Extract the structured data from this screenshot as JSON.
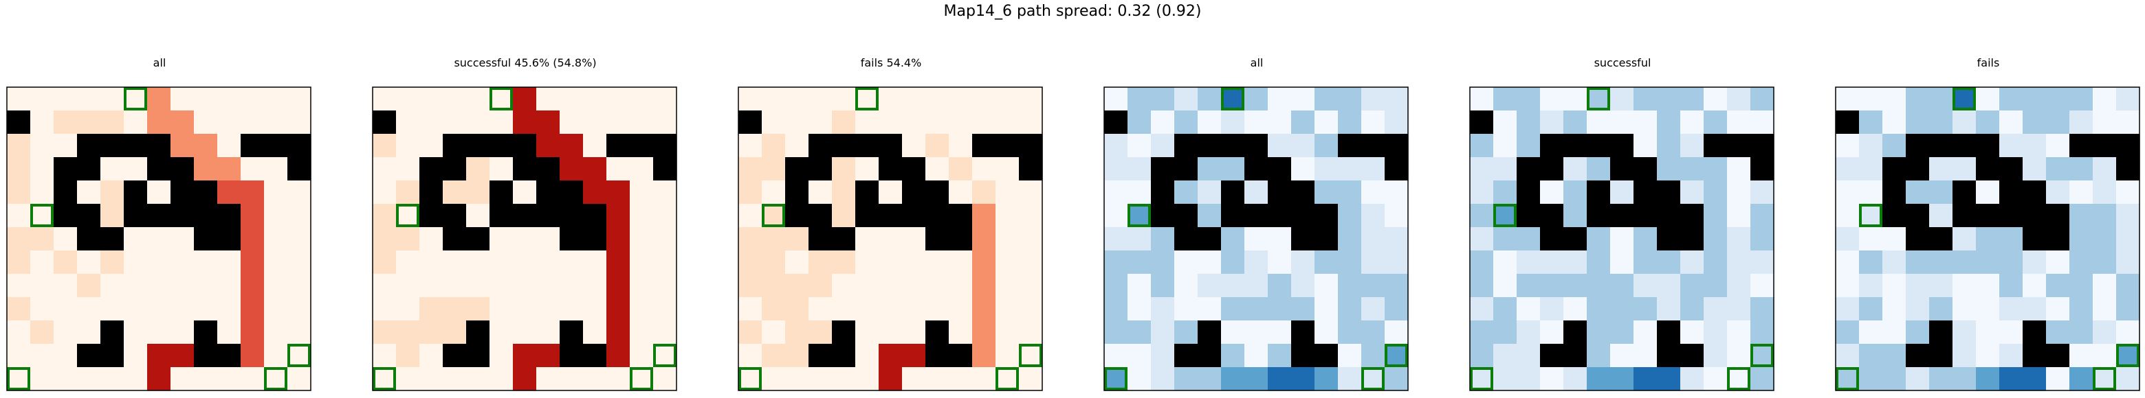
{
  "figure": {
    "suptitle": "Map14_6 path spread: 0.32 (0.92)"
  },
  "chart_data": {
    "type": "heatmap",
    "title": "Map14_6 path spread: 0.32 (0.92)",
    "grid_size": [
      13,
      13
    ],
    "legend": "none",
    "walls": [
      [
        1,
        0
      ],
      [
        2,
        3
      ],
      [
        2,
        4
      ],
      [
        2,
        5
      ],
      [
        2,
        6
      ],
      [
        2,
        10
      ],
      [
        2,
        11
      ],
      [
        2,
        12
      ],
      [
        3,
        2
      ],
      [
        3,
        3
      ],
      [
        3,
        6
      ],
      [
        3,
        7
      ],
      [
        3,
        12
      ],
      [
        4,
        2
      ],
      [
        4,
        5
      ],
      [
        4,
        7
      ],
      [
        4,
        8
      ],
      [
        5,
        2
      ],
      [
        5,
        3
      ],
      [
        5,
        5
      ],
      [
        5,
        6
      ],
      [
        5,
        7
      ],
      [
        5,
        8
      ],
      [
        5,
        9
      ],
      [
        6,
        3
      ],
      [
        6,
        4
      ],
      [
        6,
        8
      ],
      [
        6,
        9
      ],
      [
        10,
        4
      ],
      [
        10,
        8
      ],
      [
        11,
        4
      ],
      [
        11,
        3
      ],
      [
        11,
        8
      ],
      [
        11,
        9
      ]
    ],
    "markers": [
      [
        0,
        5
      ],
      [
        5,
        1
      ],
      [
        12,
        0
      ],
      [
        12,
        11
      ],
      [
        11,
        12
      ]
    ],
    "panels": [
      {
        "title": "all",
        "cmap": "Reds",
        "high": [
          [
            0,
            6,
            2
          ],
          [
            1,
            6,
            2
          ],
          [
            1,
            7,
            2
          ],
          [
            2,
            7,
            2
          ],
          [
            2,
            8,
            2
          ],
          [
            3,
            8,
            2
          ],
          [
            3,
            9,
            2
          ],
          [
            4,
            9,
            3
          ],
          [
            4,
            10,
            3
          ],
          [
            5,
            10,
            3
          ],
          [
            6,
            10,
            3
          ],
          [
            7,
            10,
            3
          ],
          [
            8,
            10,
            3
          ],
          [
            9,
            10,
            3
          ],
          [
            10,
            10,
            3
          ],
          [
            11,
            10,
            3
          ],
          [
            11,
            9,
            3
          ],
          [
            11,
            8,
            3
          ],
          [
            11,
            7,
            4
          ],
          [
            11,
            6,
            4
          ],
          [
            12,
            6,
            4
          ]
        ]
      },
      {
        "title": "successful 45.6% (54.8%)",
        "cmap": "Reds",
        "high": [
          [
            0,
            6,
            4
          ],
          [
            1,
            6,
            4
          ],
          [
            1,
            7,
            4
          ],
          [
            2,
            7,
            4
          ],
          [
            2,
            8,
            4
          ],
          [
            3,
            8,
            4
          ],
          [
            3,
            9,
            4
          ],
          [
            4,
            9,
            4
          ],
          [
            4,
            10,
            4
          ],
          [
            5,
            10,
            4
          ],
          [
            6,
            10,
            4
          ],
          [
            7,
            10,
            4
          ],
          [
            8,
            10,
            4
          ],
          [
            9,
            10,
            4
          ],
          [
            10,
            10,
            4
          ],
          [
            11,
            10,
            4
          ],
          [
            11,
            9,
            4
          ],
          [
            11,
            8,
            4
          ],
          [
            11,
            7,
            4
          ],
          [
            11,
            6,
            4
          ],
          [
            12,
            6,
            4
          ]
        ]
      },
      {
        "title": "fails 54.4%",
        "cmap": "Reds",
        "high": [
          [
            2,
            8,
            1
          ],
          [
            3,
            9,
            1
          ],
          [
            4,
            10,
            1
          ],
          [
            5,
            10,
            2
          ],
          [
            6,
            10,
            2
          ],
          [
            7,
            10,
            2
          ],
          [
            8,
            10,
            2
          ],
          [
            9,
            10,
            2
          ],
          [
            10,
            10,
            2
          ],
          [
            11,
            10,
            2
          ],
          [
            11,
            9,
            3
          ],
          [
            11,
            8,
            3
          ],
          [
            11,
            7,
            4
          ],
          [
            11,
            6,
            4
          ],
          [
            12,
            6,
            4
          ]
        ]
      },
      {
        "title": "all",
        "cmap": "Blues",
        "high": [
          [
            0,
            5,
            4
          ],
          [
            12,
            5,
            3
          ],
          [
            12,
            6,
            3
          ],
          [
            12,
            7,
            4
          ],
          [
            12,
            8,
            4
          ],
          [
            12,
            4,
            2
          ],
          [
            12,
            9,
            3
          ],
          [
            5,
            1,
            3
          ],
          [
            12,
            0,
            3
          ],
          [
            11,
            12,
            3
          ],
          [
            5,
            10,
            2
          ],
          [
            6,
            10,
            2
          ],
          [
            7,
            10,
            2
          ],
          [
            8,
            10,
            2
          ],
          [
            9,
            10,
            2
          ],
          [
            10,
            10,
            2
          ]
        ]
      },
      {
        "title": "successful",
        "cmap": "Blues",
        "high": [
          [
            0,
            1,
            2
          ],
          [
            0,
            2,
            2
          ],
          [
            0,
            5,
            2
          ],
          [
            5,
            1,
            3
          ],
          [
            12,
            6,
            3
          ],
          [
            12,
            7,
            4
          ],
          [
            12,
            8,
            4
          ],
          [
            12,
            5,
            3
          ],
          [
            6,
            10,
            2
          ],
          [
            7,
            10,
            2
          ],
          [
            8,
            10,
            2
          ],
          [
            11,
            12,
            2
          ]
        ]
      },
      {
        "title": "fails",
        "cmap": "Blues",
        "high": [
          [
            0,
            5,
            4
          ],
          [
            0,
            4,
            2
          ],
          [
            12,
            7,
            4
          ],
          [
            12,
            8,
            4
          ],
          [
            12,
            6,
            3
          ],
          [
            12,
            10,
            3
          ],
          [
            12,
            0,
            2
          ],
          [
            11,
            12,
            3
          ],
          [
            5,
            10,
            2
          ],
          [
            6,
            10,
            2
          ],
          [
            7,
            10,
            2
          ],
          [
            8,
            10,
            2
          ],
          [
            9,
            10,
            2
          ]
        ]
      }
    ]
  }
}
